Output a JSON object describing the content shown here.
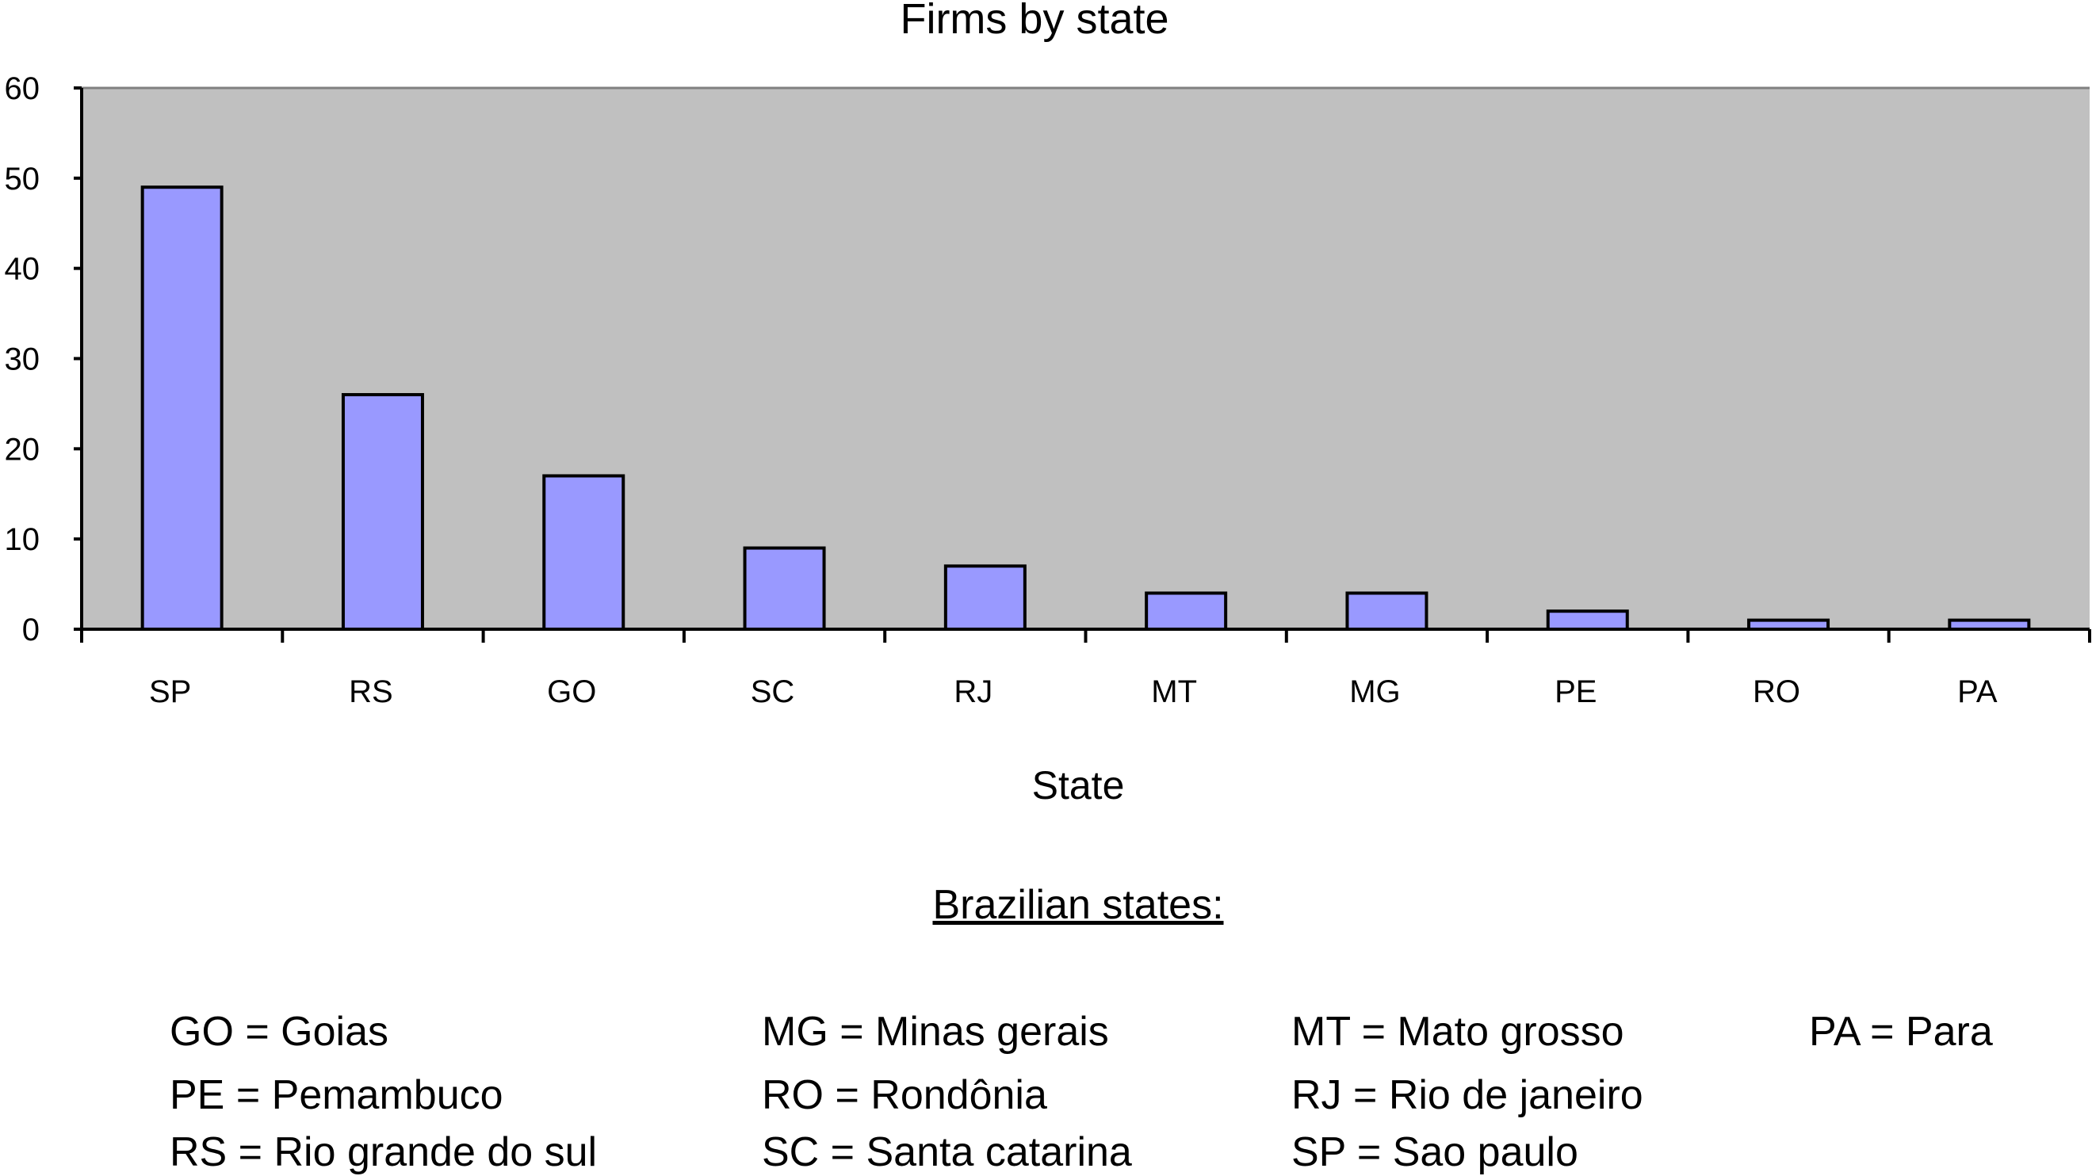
{
  "chart_data": {
    "type": "bar",
    "title": "Firms by state",
    "xlabel": "State",
    "ylabel": "",
    "categories": [
      "SP",
      "RS",
      "GO",
      "SC",
      "RJ",
      "MT",
      "MG",
      "PE",
      "RO",
      "PA"
    ],
    "values": [
      49,
      26,
      17,
      9,
      7,
      4,
      4,
      2,
      1,
      1
    ],
    "ylim": [
      0,
      60
    ],
    "yticks": [
      0,
      10,
      20,
      30,
      40,
      50,
      60
    ],
    "grid": false,
    "colors": {
      "bar": "#9999ff",
      "bar_edge": "#000000",
      "plot_bg": "#c0c0c0"
    }
  },
  "legend": {
    "title": "Brazilian states:",
    "columns": [
      [
        "GO = Goias",
        "PE = Pemambuco",
        "RS = Rio grande do sul"
      ],
      [
        "MG = Minas gerais",
        "RO = Rondônia",
        "SC = Santa catarina"
      ],
      [
        "MT = Mato grosso",
        "RJ = Rio de janeiro",
        "SP = Sao paulo"
      ],
      [
        "PA = Para"
      ]
    ]
  }
}
